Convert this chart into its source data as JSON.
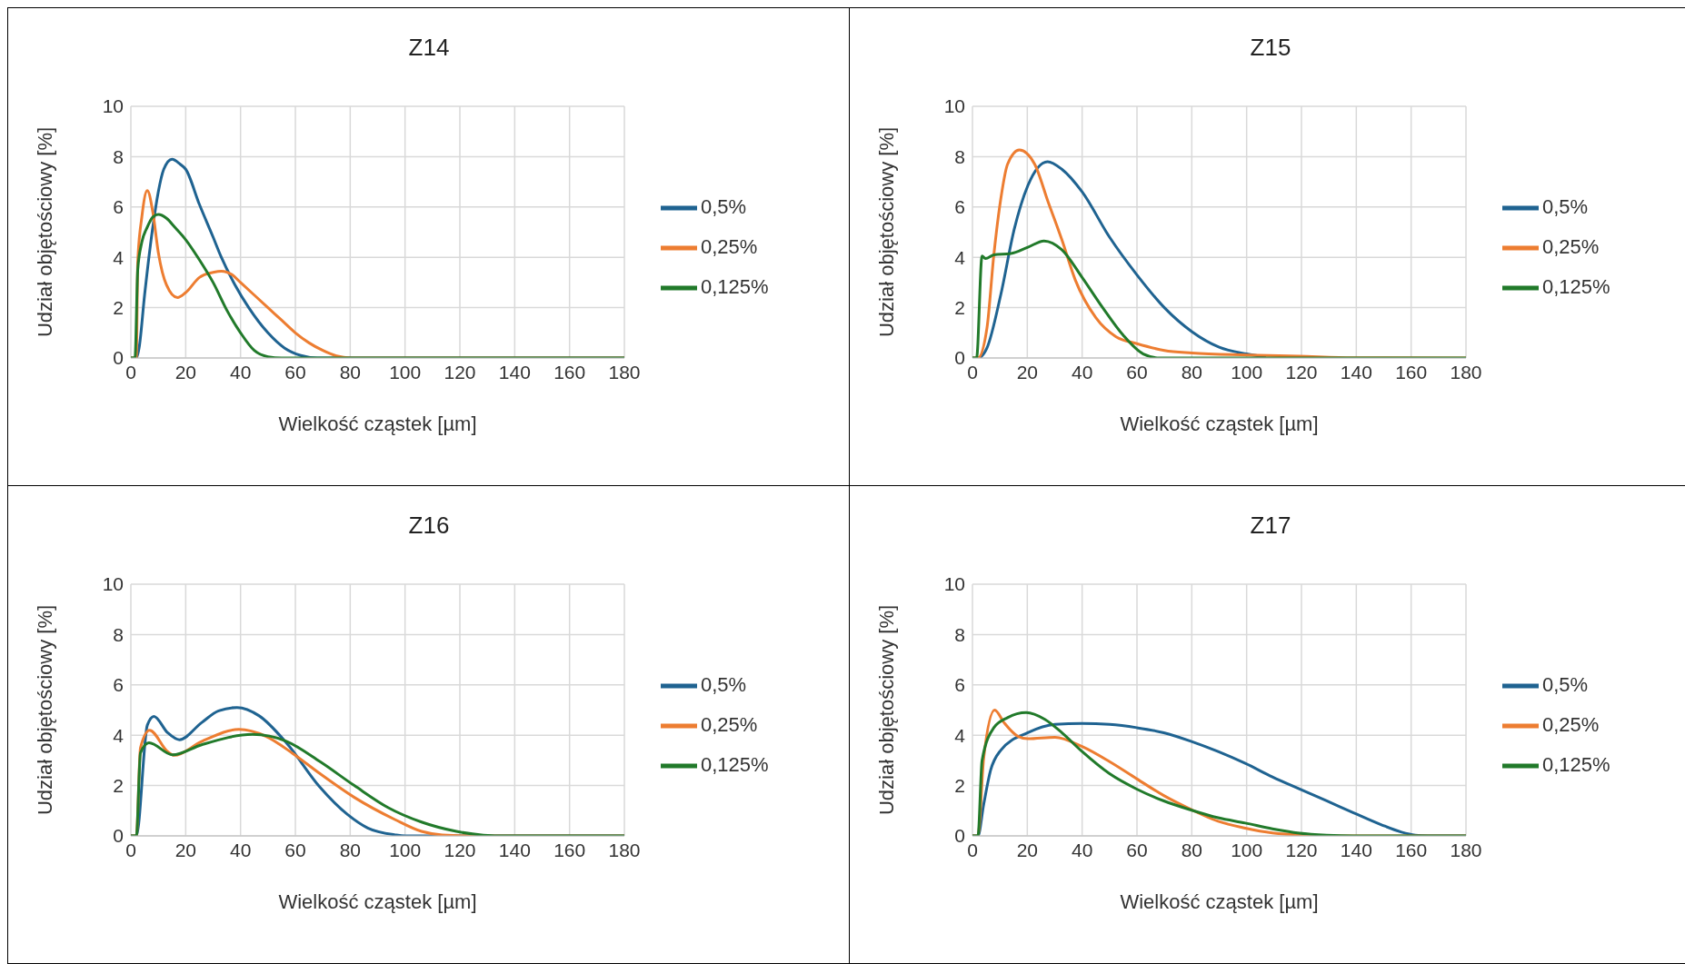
{
  "chart_data": [
    {
      "type": "line",
      "title": "Z14",
      "xlabel": "Wielkość cząstek [µm]",
      "ylabel": "Udział objętościowy [%]",
      "xlim": [
        0,
        180
      ],
      "xticks": [
        0,
        20,
        40,
        60,
        80,
        100,
        120,
        140,
        160,
        180
      ],
      "ylim": [
        0,
        10
      ],
      "yticks": [
        0,
        2,
        4,
        6,
        8,
        10
      ],
      "grid": true,
      "legend": "right",
      "marker": "none",
      "line_style": "solid",
      "series": [
        {
          "name": "0,5%",
          "color": "#1f6391",
          "x": [
            0,
            2,
            3,
            5,
            8,
            10,
            12,
            15,
            18,
            20,
            25,
            30,
            33,
            38,
            43,
            50,
            56,
            62,
            68,
            180
          ],
          "values": [
            0,
            0,
            0.4,
            2.5,
            5.2,
            6.6,
            7.5,
            7.9,
            7.7,
            7.5,
            6.1,
            4.8,
            4.0,
            2.9,
            2.0,
            1.0,
            0.4,
            0.1,
            0,
            0
          ]
        },
        {
          "name": "0,25%",
          "color": "#ed7d31",
          "x": [
            0,
            2,
            2.5,
            4,
            6,
            8,
            10,
            13,
            17,
            20,
            25,
            30,
            33,
            37,
            40,
            45,
            50,
            55,
            60,
            65,
            70,
            75,
            80,
            180
          ],
          "values": [
            0,
            0,
            3.8,
            5.6,
            6.65,
            5.8,
            4.2,
            2.9,
            2.4,
            2.6,
            3.2,
            3.4,
            3.45,
            3.3,
            3.0,
            2.5,
            2.0,
            1.5,
            1.0,
            0.6,
            0.3,
            0.08,
            0,
            0
          ]
        },
        {
          "name": "0,125%",
          "color": "#217a2a",
          "x": [
            0,
            1.5,
            2.5,
            4,
            6,
            8,
            10,
            13,
            16,
            20,
            25,
            30,
            35,
            40,
            45,
            50,
            55,
            180
          ],
          "values": [
            0,
            0,
            3.5,
            4.6,
            5.2,
            5.6,
            5.7,
            5.55,
            5.2,
            4.7,
            3.9,
            3.0,
            1.9,
            1.0,
            0.3,
            0.05,
            0,
            0
          ]
        }
      ]
    },
    {
      "type": "line",
      "title": "Z15",
      "xlabel": "Wielkość cząstek [µm]",
      "ylabel": "Udział objętościowy [%]",
      "xlim": [
        0,
        180
      ],
      "xticks": [
        0,
        20,
        40,
        60,
        80,
        100,
        120,
        140,
        160,
        180
      ],
      "ylim": [
        0,
        10
      ],
      "yticks": [
        0,
        2,
        4,
        6,
        8,
        10
      ],
      "grid": true,
      "legend": "right",
      "marker": "none",
      "line_style": "solid",
      "series": [
        {
          "name": "0,5%",
          "color": "#1f6391",
          "x": [
            0,
            2,
            5.3,
            10.3,
            15.2,
            20.2,
            27.4,
            32.6,
            40,
            50,
            60,
            70,
            80,
            90,
            100,
            107
          ],
          "values": [
            0,
            0,
            0.4,
            2.5,
            5.1,
            6.85,
            7.8,
            7.5,
            6.6,
            4.8,
            3.3,
            2.0,
            1.05,
            0.43,
            0.16,
            0.03
          ]
        },
        {
          "name": "0,25%",
          "color": "#ed7d31",
          "x": [
            0,
            2,
            5.3,
            7.8,
            10.3,
            12.8,
            17.1,
            22.7,
            27.6,
            32.6,
            37.5,
            45,
            52.4,
            60,
            70,
            80,
            100,
            119,
            139,
            180
          ],
          "values": [
            0,
            0,
            1.2,
            4.1,
            6.3,
            7.7,
            8.27,
            7.7,
            6.2,
            4.7,
            3.1,
            1.6,
            0.84,
            0.57,
            0.3,
            0.2,
            0.12,
            0.07,
            0.01,
            0
          ]
        },
        {
          "name": "0,125%",
          "color": "#217a2a",
          "x": [
            0,
            1.5,
            3.5,
            4.8,
            7.8,
            14,
            20.2,
            26.1,
            32.6,
            40,
            47.5,
            55,
            62.3,
            68.5,
            180
          ],
          "values": [
            0,
            0,
            4.05,
            3.95,
            4.1,
            4.15,
            4.4,
            4.65,
            4.3,
            3.2,
            2.0,
            0.9,
            0.16,
            0,
            0
          ]
        }
      ]
    },
    {
      "type": "line",
      "title": "Z16",
      "xlabel": "Wielkość cząstek [µm]",
      "ylabel": "Udział objętościowy [%]",
      "xlim": [
        0,
        180
      ],
      "xticks": [
        0,
        20,
        40,
        60,
        80,
        100,
        120,
        140,
        160,
        180
      ],
      "ylim": [
        0,
        10
      ],
      "yticks": [
        0,
        2,
        4,
        6,
        8,
        10
      ],
      "grid": true,
      "legend": "right",
      "marker": "none",
      "line_style": "solid",
      "series": [
        {
          "name": "0,5%",
          "color": "#1f6391",
          "x": [
            0,
            2,
            6,
            8.4,
            13.4,
            17.7,
            25.8,
            32,
            38.7,
            46.8,
            56.7,
            69,
            79,
            86.4,
            96.4,
            100,
            180
          ],
          "values": [
            0,
            0,
            4.4,
            4.75,
            4.1,
            3.82,
            4.5,
            4.97,
            5.1,
            4.77,
            3.7,
            1.93,
            0.85,
            0.31,
            0.04,
            0,
            0
          ]
        },
        {
          "name": "0,25%",
          "color": "#ed7d31",
          "x": [
            0,
            2,
            3.5,
            6.8,
            13.4,
            15.8,
            25.8,
            39.4,
            49.2,
            59,
            69,
            81.5,
            96.3,
            106,
            113.6,
            125,
            180
          ],
          "values": [
            0,
            0,
            3.5,
            4.2,
            3.35,
            3.2,
            3.75,
            4.23,
            3.96,
            3.28,
            2.47,
            1.53,
            0.65,
            0.18,
            0.04,
            0,
            0
          ]
        },
        {
          "name": "0,125%",
          "color": "#217a2a",
          "x": [
            0,
            2,
            3.5,
            6.6,
            15.2,
            25.8,
            44.4,
            56.7,
            69,
            81.5,
            93.9,
            106,
            118.7,
            128.6,
            133.6,
            180
          ],
          "values": [
            0,
            0,
            3.3,
            3.7,
            3.22,
            3.62,
            4.03,
            3.76,
            2.95,
            2.0,
            1.12,
            0.55,
            0.18,
            0.03,
            0,
            0
          ]
        }
      ]
    },
    {
      "type": "line",
      "title": "Z17",
      "xlabel": "Wielkość cząstek [µm]",
      "ylabel": "Udział objętościowy [%]",
      "xlim": [
        0,
        180
      ],
      "xticks": [
        0,
        20,
        40,
        60,
        80,
        100,
        120,
        140,
        160,
        180
      ],
      "ylim": [
        0,
        10
      ],
      "yticks": [
        0,
        2,
        4,
        6,
        8,
        10
      ],
      "grid": true,
      "legend": "right",
      "marker": "none",
      "line_style": "solid",
      "series": [
        {
          "name": "0,5%",
          "color": "#1f6391",
          "x": [
            0,
            2,
            4.1,
            6.6,
            10.3,
            20.2,
            30.1,
            40,
            50,
            59.9,
            69.8,
            79.7,
            89.6,
            99.5,
            109.4,
            119.3,
            129.2,
            139,
            149,
            156.5,
            161.5,
            166,
            180
          ],
          "values": [
            0,
            0,
            1.26,
            2.6,
            3.4,
            4.1,
            4.43,
            4.47,
            4.43,
            4.3,
            4.1,
            3.76,
            3.35,
            2.88,
            2.34,
            1.86,
            1.39,
            0.92,
            0.45,
            0.15,
            0.03,
            0,
            0
          ]
        },
        {
          "name": "0,25%",
          "color": "#ed7d31",
          "x": [
            0,
            2,
            4.1,
            8.1,
            11.5,
            16.5,
            20.2,
            30.1,
            40,
            50,
            59.9,
            69.8,
            79.7,
            89.6,
            99.5,
            109.4,
            119.3,
            126,
            180
          ],
          "values": [
            0,
            0,
            3.1,
            5.0,
            4.5,
            3.96,
            3.86,
            3.92,
            3.55,
            2.95,
            2.27,
            1.6,
            1.05,
            0.58,
            0.31,
            0.12,
            0.04,
            0,
            0
          ]
        },
        {
          "name": "0,125%",
          "color": "#217a2a",
          "x": [
            0,
            2,
            3.5,
            7.8,
            12.8,
            19.6,
            26.4,
            32.6,
            40,
            50,
            59.9,
            69.8,
            79.7,
            89.6,
            99.5,
            109.4,
            119.3,
            129.2,
            139,
            180
          ],
          "values": [
            0,
            0,
            3.0,
            4.3,
            4.7,
            4.9,
            4.63,
            4.1,
            3.35,
            2.47,
            1.86,
            1.39,
            1.03,
            0.72,
            0.51,
            0.28,
            0.11,
            0.03,
            0,
            0
          ]
        }
      ]
    }
  ]
}
